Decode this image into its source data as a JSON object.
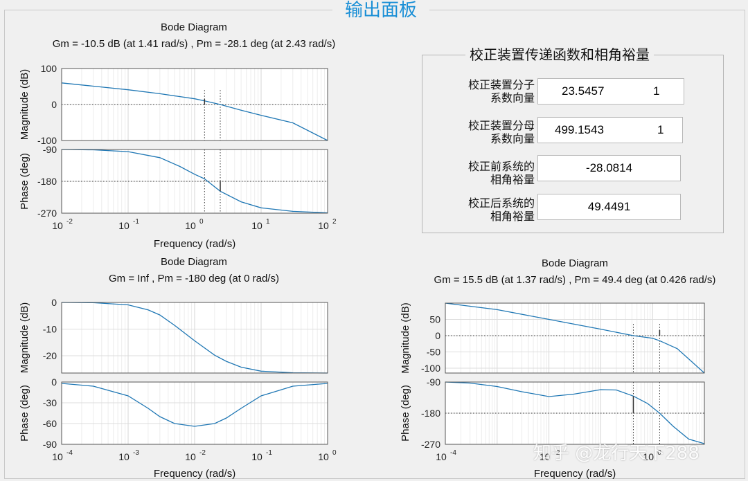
{
  "panel": {
    "title": "输出面板"
  },
  "compensator": {
    "title": "校正装置传递函数和相角裕量",
    "rows": [
      {
        "label1": "校正装置分子",
        "label2": "系数向量",
        "values": [
          "23.5457",
          "1"
        ]
      },
      {
        "label1": "校正装置分母",
        "label2": "系数向量",
        "values": [
          "499.1543",
          "1"
        ]
      },
      {
        "label1": "校正前系统的",
        "label2": "相角裕量",
        "values": [
          "-28.0814"
        ]
      },
      {
        "label1": "校正后系统的",
        "label2": "相角裕量",
        "values": [
          "49.4491"
        ]
      }
    ]
  },
  "watermark": "知乎 @龙行天下288",
  "chart_data": [
    {
      "type": "line",
      "title": "Bode Diagram",
      "subtitle": "Gm = -10.5 dB (at 1.41 rad/s) ,  Pm = -28.1 deg (at 2.43 rad/s)",
      "xlabel": "Frequency  (rad/s)",
      "x_scale": "log",
      "xlim": [
        0.01,
        100
      ],
      "x_ticks": [
        {
          "base": "10",
          "exp": "-2"
        },
        {
          "base": "10",
          "exp": "-1"
        },
        {
          "base": "10",
          "exp": "0"
        },
        {
          "base": "10",
          "exp": "1"
        },
        {
          "base": "10",
          "exp": "2"
        }
      ],
      "grid": true,
      "magnitude": {
        "ylabel": "Magnitude (dB)",
        "ylim": [
          -100,
          100
        ],
        "yticks": [
          "100",
          "0",
          "-100"
        ],
        "ytick_values": [
          100,
          0,
          -100
        ],
        "x": [
          0.01,
          0.03,
          0.1,
          0.3,
          1,
          1.41,
          2.43,
          5,
          10,
          30,
          100
        ],
        "y": [
          60,
          51,
          41,
          30,
          16,
          10,
          0,
          -16,
          -30,
          -51,
          -100
        ]
      },
      "phase": {
        "ylabel": "Phase (deg)",
        "ylim": [
          -270,
          -90
        ],
        "yticks": [
          "-90",
          "-180",
          "-270"
        ],
        "ytick_values": [
          -90,
          -180,
          -270
        ],
        "x": [
          0.01,
          0.03,
          0.1,
          0.3,
          0.6,
          1,
          1.41,
          2.43,
          5,
          10,
          30,
          100
        ],
        "y": [
          -90,
          -91,
          -96,
          -113,
          -138,
          -160,
          -173,
          -208,
          -238,
          -255,
          -265,
          -269
        ]
      },
      "markers": {
        "gm_freq": 1.41,
        "gm_value": -10.5,
        "pm_freq": 2.43,
        "pm_value": -28.1
      }
    },
    {
      "type": "line",
      "title": "Bode Diagram",
      "subtitle": "Gm = Inf ,  Pm = -180 deg (at 0 rad/s)",
      "xlabel": "Frequency  (rad/s)",
      "x_scale": "log",
      "xlim": [
        0.0001,
        1
      ],
      "x_ticks": [
        {
          "base": "10",
          "exp": "-4"
        },
        {
          "base": "10",
          "exp": "-3"
        },
        {
          "base": "10",
          "exp": "-2"
        },
        {
          "base": "10",
          "exp": "-1"
        },
        {
          "base": "10",
          "exp": "0"
        }
      ],
      "grid": true,
      "magnitude": {
        "ylabel": "Magnitude (dB)",
        "ylim": [
          -26.5,
          0
        ],
        "yticks": [
          "0",
          "-10",
          "-20"
        ],
        "ytick_values": [
          0,
          -10,
          -20
        ],
        "x": [
          0.0001,
          0.0003,
          0.001,
          0.002,
          0.003,
          0.005,
          0.01,
          0.02,
          0.03,
          0.05,
          0.1,
          0.3,
          1
        ],
        "y": [
          0,
          -0.1,
          -0.9,
          -2.8,
          -4.7,
          -8.6,
          -14.4,
          -19.8,
          -22.1,
          -24.3,
          -25.8,
          -26.4,
          -26.5
        ]
      },
      "phase": {
        "ylabel": "Phase (deg)",
        "ylim": [
          -90,
          0
        ],
        "yticks": [
          "0",
          "-30",
          "-60",
          "-90"
        ],
        "ytick_values": [
          0,
          -30,
          -60,
          -90
        ],
        "x": [
          0.0001,
          0.0003,
          0.001,
          0.002,
          0.003,
          0.005,
          0.01,
          0.02,
          0.03,
          0.05,
          0.1,
          0.3,
          1
        ],
        "y": [
          -2,
          -6,
          -20,
          -38,
          -50,
          -60,
          -64,
          -60,
          -52,
          -38,
          -20,
          -6,
          -2
        ]
      }
    },
    {
      "type": "line",
      "title": "Bode Diagram",
      "subtitle": "Gm = 15.5 dB (at 1.37 rad/s) ,  Pm = 49.4 deg (at 0.426 rad/s)",
      "xlabel": "Frequency  (rad/s)",
      "x_scale": "log",
      "xlim": [
        0.0001,
        10
      ],
      "x_ticks": [
        {
          "base": "10",
          "exp": "-4"
        },
        {
          "base": "10",
          "exp": "-2"
        },
        {
          "base": "10",
          "exp": "0"
        }
      ],
      "grid": true,
      "magnitude": {
        "ylabel": "Magnitude (dB)",
        "ylim": [
          -115,
          100
        ],
        "yticks": [
          "50",
          "0",
          "-50",
          "-100"
        ],
        "ytick_values": [
          50,
          0,
          -50,
          -100
        ],
        "x": [
          0.0001,
          0.001,
          0.01,
          0.1,
          0.426,
          1,
          1.37,
          3,
          10
        ],
        "y": [
          100,
          80,
          50,
          20,
          0,
          -8,
          -15.5,
          -40,
          -115
        ]
      },
      "phase": {
        "ylabel": "Phase (deg)",
        "ylim": [
          -270,
          -90
        ],
        "yticks": [
          "-90",
          "-180",
          "-270"
        ],
        "ytick_values": [
          -90,
          -180,
          -270
        ],
        "x": [
          0.0001,
          0.0003,
          0.001,
          0.003,
          0.01,
          0.03,
          0.1,
          0.2,
          0.426,
          0.8,
          1.37,
          2.5,
          5,
          10
        ],
        "y": [
          -90,
          -93,
          -103,
          -118,
          -132,
          -125,
          -112,
          -113,
          -130.6,
          -152,
          -180,
          -218,
          -255,
          -268
        ]
      },
      "markers": {
        "gm_freq": 1.37,
        "gm_value": 15.5,
        "pm_freq": 0.426,
        "pm_value": 49.4
      }
    }
  ]
}
